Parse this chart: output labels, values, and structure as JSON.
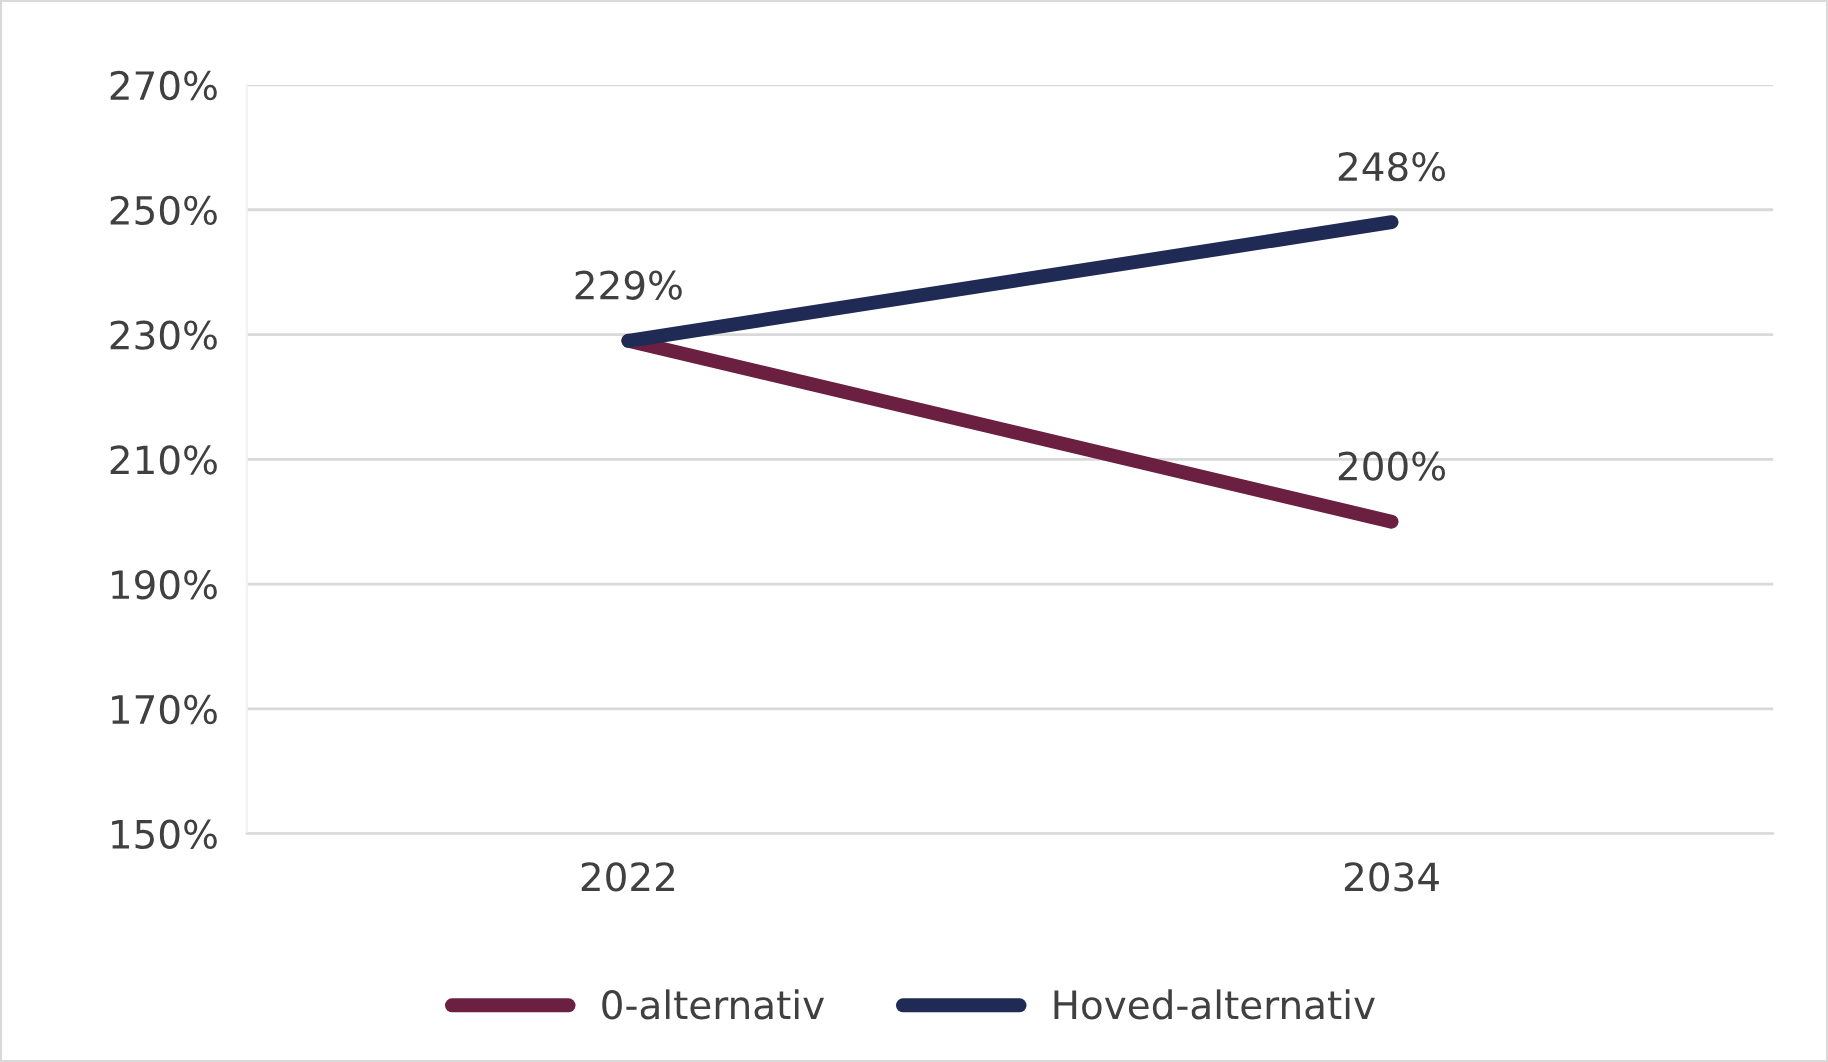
{
  "chart_data": {
    "type": "line",
    "categories": [
      "2022",
      "2034"
    ],
    "series": [
      {
        "name": "0-alternativ",
        "color": "#6b2042",
        "values": [
          229,
          200
        ],
        "value_labels": [
          null,
          "200%"
        ]
      },
      {
        "name": "Hoved-alternativ",
        "color": "#1f2a55",
        "values": [
          229,
          248
        ],
        "value_labels": [
          "229%",
          "248%"
        ]
      }
    ],
    "ylim": [
      150,
      270
    ],
    "yticks": [
      {
        "value": 150,
        "label": "150%"
      },
      {
        "value": 170,
        "label": "170%"
      },
      {
        "value": 190,
        "label": "190%"
      },
      {
        "value": 210,
        "label": "210%"
      },
      {
        "value": 230,
        "label": "230%"
      },
      {
        "value": 250,
        "label": "250%"
      },
      {
        "value": 270,
        "label": "270%"
      }
    ],
    "grid": "y",
    "legend": "bottom",
    "marker": "none",
    "line_style": "solid"
  }
}
